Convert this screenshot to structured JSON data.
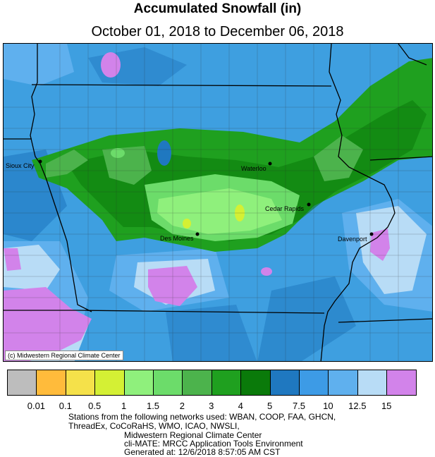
{
  "title": "Accumulated Snowfall (in)",
  "subtitle": "October 01, 2018 to December 06, 2018",
  "credit": "(c) Midwestern Regional Climate Center",
  "cities": [
    {
      "name": "Sioux City"
    },
    {
      "name": "Waterloo"
    },
    {
      "name": "Cedar Rapids"
    },
    {
      "name": "Des Moines"
    },
    {
      "name": "Davenport"
    }
  ],
  "legend": {
    "colors": [
      "#bdbdbd",
      "#ffbb3b",
      "#f5e14a",
      "#d4f034",
      "#8ff07c",
      "#6cdc6a",
      "#4cb34c",
      "#1fa01f",
      "#0a7a0a",
      "#1f78c0",
      "#3d9be6",
      "#5fb0ee",
      "#b8dcf6",
      "#d283ea"
    ],
    "tick_labels": [
      "0.01",
      "0.1",
      "0.5",
      "1",
      "1.5",
      "2",
      "3",
      "4",
      "5",
      "7.5",
      "10",
      "12.5",
      "15"
    ]
  },
  "footer": {
    "line1": "Stations from the following networks used: WBAN, COOP, FAA, GHCN,",
    "line2": "ThreadEx, CoCoRaHS, WMO, ICAO, NWSLI,",
    "line3": "Midwestern Regional Climate Center",
    "line4": "cli-MATE: MRCC Application Tools Environment",
    "line5": "Generated at: 12/6/2018 8:57:05 AM CST"
  }
}
